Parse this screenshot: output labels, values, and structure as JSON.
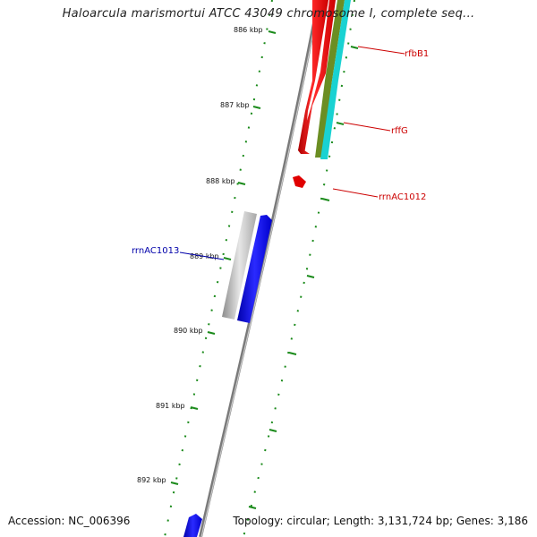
{
  "title": "Haloarcula marismortui ATCC 43049 chromosome I, complete seq...",
  "footer": {
    "accession": "Accession: NC_006396",
    "topology": "Topology: circular; Length: 3,131,724 bp; Genes: 3,186"
  },
  "ticks": [
    {
      "label": "886 kbp"
    },
    {
      "label": "887 kbp"
    },
    {
      "label": "888 kbp"
    },
    {
      "label": "889 kbp"
    },
    {
      "label": "890 kbp"
    },
    {
      "label": "891 kbp"
    },
    {
      "label": "892 kbp"
    }
  ],
  "genes": [
    {
      "name": "rfbB1",
      "color": "#cc0000"
    },
    {
      "name": "rffG",
      "color": "#cc0000"
    },
    {
      "name": "rrnAC1012",
      "color": "#cc0000"
    },
    {
      "name": "rrnAC1013",
      "color": "#0000aa"
    }
  ],
  "colors": {
    "backbone": "#8a8a8a",
    "tick": "#1a8a1a",
    "forward_gene": "#ff0000",
    "reverse_gene": "#0000ff",
    "olive_track": "#6b8e23",
    "cyan_track": "#00d0d0",
    "gray_track": "#b8b8b8"
  }
}
